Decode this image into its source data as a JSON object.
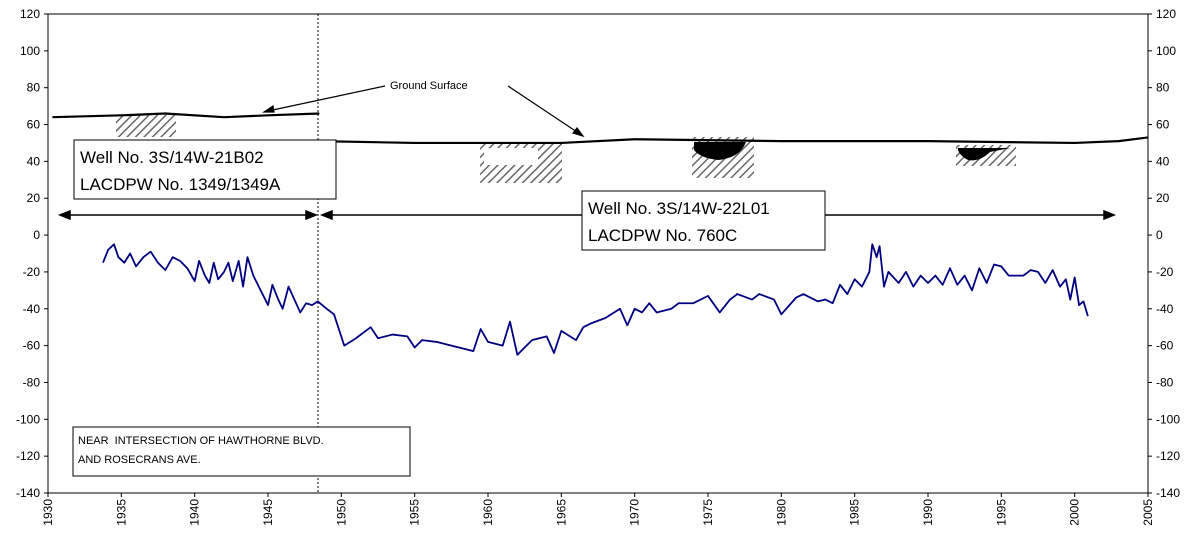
{
  "chart_data": {
    "type": "line",
    "annotations": [
      "Ground Surface",
      "Well No. 3S/14W-21B02",
      "LACDPW No. 1349/1349A",
      "Well No. 3S/14W-22L01",
      "LACDPW No. 760C",
      "NEAR  INTERSECTION OF HAWTHORNE BLVD.",
      "AND ROSECRANS AVE."
    ],
    "xlim": [
      1930,
      2005
    ],
    "xticks": [
      1930,
      1935,
      1940,
      1945,
      1950,
      1955,
      1960,
      1965,
      1970,
      1975,
      1980,
      1985,
      1990,
      1995,
      2000,
      2005
    ],
    "ylim": [
      -140,
      120
    ],
    "yticks": [
      -140,
      -120,
      -100,
      -80,
      -60,
      -40,
      -20,
      0,
      20,
      40,
      60,
      80,
      100,
      120
    ],
    "grid": "x",
    "series": [
      {
        "color": "#000080",
        "x": [
          1933.75,
          1934.1,
          1934.5,
          1934.8,
          1935.2,
          1935.6,
          1936,
          1936.5,
          1937,
          1937.5,
          1938,
          1938.5,
          1939,
          1939.5,
          1940,
          1940.3,
          1940.7,
          1941,
          1941.3,
          1941.6,
          1942,
          1942.3,
          1942.6,
          1943,
          1943.3,
          1943.6,
          1944,
          1944.5,
          1945,
          1945.3,
          1945.7,
          1946,
          1946.4,
          1946.8,
          1947.2,
          1947.6,
          1948,
          1948.4,
          1949,
          1949.5,
          1950.2,
          1951,
          1952,
          1952.5,
          1953.5,
          1954.5,
          1955,
          1955.5,
          1956.5,
          1957.5,
          1958.5,
          1959,
          1959.5,
          1960,
          1961,
          1961.5,
          1962,
          1963,
          1964,
          1964.5,
          1965,
          1966,
          1966.5,
          1967,
          1968,
          1969,
          1969.5,
          1970,
          1970.5,
          1971,
          1971.5,
          1972.5,
          1973,
          1974,
          1975,
          1975.8,
          1976.5,
          1977,
          1978,
          1978.5,
          1979.5,
          1980,
          1981,
          1981.5,
          1982.5,
          1983,
          1983.5,
          1984,
          1984.5,
          1985,
          1985.5,
          1986,
          1986.2,
          1986.5,
          1986.7,
          1987,
          1987.3,
          1988,
          1988.5,
          1989,
          1989.5,
          1990,
          1990.5,
          1991,
          1991.5,
          1992,
          1992.5,
          1993,
          1993.5,
          1994,
          1994.5,
          1995,
          1995.5,
          1996.5,
          1997,
          1997.5,
          1998,
          1998.5,
          1999,
          1999.4,
          1999.7,
          2000,
          2000.3,
          2000.6,
          2000.9
        ],
        "values": [
          -15,
          -8,
          -5,
          -12,
          -15,
          -10,
          -17,
          -12,
          -9,
          -15,
          -19,
          -12,
          -14,
          -18,
          -25,
          -14,
          -22,
          -26,
          -15,
          -24,
          -20,
          -15,
          -25,
          -14,
          -28,
          -12,
          -22,
          -30,
          -38,
          -27,
          -35,
          -40,
          -28,
          -35,
          -42,
          -37,
          -38,
          -36,
          -40,
          -43,
          -60,
          -56,
          -50,
          -56,
          -54,
          -55,
          -61,
          -57,
          -58,
          -60,
          -62,
          -63,
          -51,
          -58,
          -60,
          -47,
          -65,
          -57,
          -55,
          -64,
          -52,
          -57,
          -50,
          -48,
          -45,
          -40,
          -49,
          -40,
          -42,
          -37,
          -42,
          -40,
          -37,
          -37,
          -33,
          -42,
          -35,
          -32,
          -35,
          -32,
          -35,
          -43,
          -34,
          -32,
          -36,
          -35,
          -37,
          -27,
          -32,
          -24,
          -28,
          -20,
          -5,
          -12,
          -6,
          -28,
          -20,
          -26,
          -20,
          -28,
          -22,
          -26,
          -22,
          -27,
          -18,
          -27,
          -22,
          -30,
          -18,
          -26,
          -16,
          -17,
          -22,
          -22,
          -19,
          -20,
          -26,
          -19,
          -28,
          -24,
          -35,
          -23,
          -38,
          -36,
          -44
        ]
      },
      {
        "color": "#000000",
        "x": [
          1930.3,
          1935,
          1938,
          1942,
          1945,
          1948.5
        ],
        "values": [
          64,
          65,
          66,
          64,
          65,
          66
        ]
      },
      {
        "color": "#000000",
        "x": [
          1948.5,
          1955,
          1965,
          1970,
          1980,
          1990,
          2000,
          2003,
          2005
        ],
        "values": [
          51,
          50,
          50,
          52,
          51,
          51,
          50,
          51,
          53
        ]
      }
    ]
  }
}
